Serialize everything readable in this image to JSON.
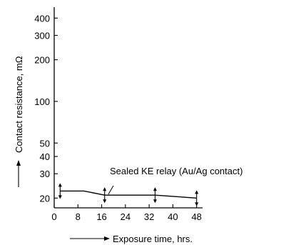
{
  "chart_data": {
    "type": "line",
    "title": "",
    "xlabel": "Exposure time, hrs.",
    "ylabel": "Contact resistance, mΩ",
    "x_scale": "linear",
    "y_scale": "log",
    "xlim": [
      0,
      50
    ],
    "ylim": [
      17,
      480
    ],
    "x_ticks": [
      0,
      8,
      16,
      24,
      32,
      40,
      48
    ],
    "x_tick_labels": [
      "0",
      "8",
      "16",
      "24",
      "32",
      "40",
      "48"
    ],
    "y_ticks": [
      20,
      30,
      40,
      50,
      100,
      200,
      300,
      400
    ],
    "y_tick_labels": [
      "20",
      "30",
      "40",
      "50",
      "100",
      "200",
      "300",
      "400"
    ],
    "grid": false,
    "annotation": "Sealed KE relay (Au/Ag contact)",
    "series": [
      {
        "name": "",
        "x": [
          2,
          10,
          17,
          34,
          48
        ],
        "y": [
          22.5,
          22.5,
          21,
          21,
          20
        ],
        "error_bar_x": [
          2,
          17,
          34,
          48
        ]
      }
    ]
  }
}
